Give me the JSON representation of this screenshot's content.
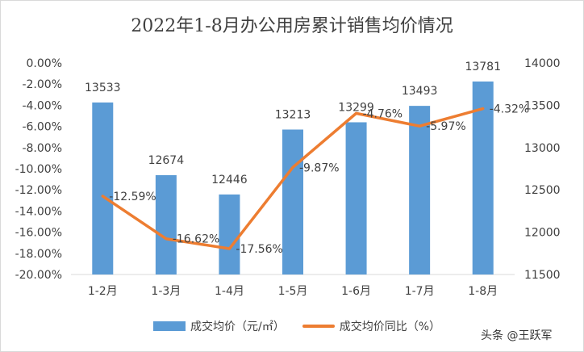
{
  "chart_data": {
    "type": "bar",
    "title": "2022年1-8月办公用房累计销售均价情况",
    "categories": [
      "1-2月",
      "1-3月",
      "1-4月",
      "1-5月",
      "1-6月",
      "1-7月",
      "1-8月"
    ],
    "series": [
      {
        "name": "成交均价（元/㎡）",
        "type": "bar",
        "axis": "right",
        "values": [
          13533,
          12674,
          12446,
          13213,
          13299,
          13493,
          13781
        ],
        "labels": [
          "13533",
          "12674",
          "12446",
          "13213",
          "13299",
          "13493",
          "13781"
        ],
        "color": "#5b9bd5"
      },
      {
        "name": "成交均价同比（%）",
        "type": "line",
        "axis": "left",
        "values": [
          -12.59,
          -16.62,
          -17.56,
          -9.87,
          -4.76,
          -5.97,
          -4.32
        ],
        "labels": [
          "-12.59%",
          "-16.62%",
          "-17.56%",
          "-9.87%",
          "-4.76%",
          "-5.97%",
          "-4.32%"
        ],
        "color": "#ed7d31"
      }
    ],
    "left_axis": {
      "ylim": [
        -20,
        0
      ],
      "ticks": [
        "0.00%",
        "-2.00%",
        "-4.00%",
        "-6.00%",
        "-8.00%",
        "-10.00%",
        "-12.00%",
        "-14.00%",
        "-16.00%",
        "-18.00%",
        "-20.00%"
      ]
    },
    "right_axis": {
      "ylim": [
        11500,
        14000
      ],
      "ticks": [
        "14000",
        "13500",
        "13000",
        "12500",
        "12000",
        "11500"
      ]
    },
    "grid": false,
    "legend_position": "bottom"
  },
  "legend": {
    "bar_label": "成交均价（元/㎡）",
    "line_label": "成交均价同比（%）"
  },
  "watermark": "头条 @王跃军"
}
